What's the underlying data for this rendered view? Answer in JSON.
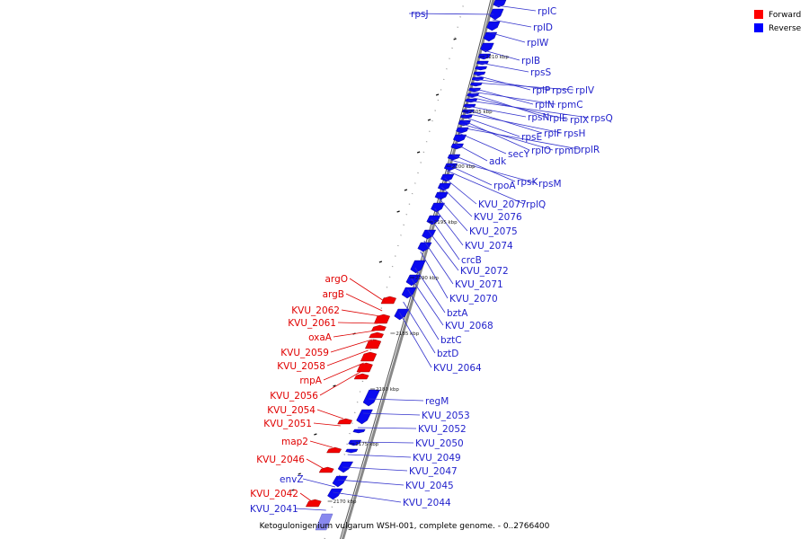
{
  "caption": "Ketogulonigenium vulgarum WSH-001, complete genome. - 0..2766400",
  "legend": [
    {
      "label": "Forward",
      "color": "#ff0000"
    },
    {
      "label": "Reverse",
      "color": "#0000ff"
    }
  ],
  "ticks": [
    "2210 kbp",
    "2205 kbp",
    "2200 kbp",
    "2195 kbp",
    "2190 kbp",
    "2185 kbp",
    "2180 kbp",
    "2175 kbp",
    "2170 kbp"
  ],
  "genes_reverse": [
    "rpsJ",
    "rplC",
    "rplD",
    "rplW",
    "rplB",
    "rpsS",
    "rplP",
    "rpsC",
    "rplV",
    "rplN",
    "rplE",
    "rpmC",
    "rplX",
    "rpsQ",
    "rpsN",
    "rplF",
    "rpsH",
    "rpsE",
    "rplO",
    "rpmD",
    "rplR",
    "secY",
    "adk",
    "rpsK",
    "rpsM",
    "rpoA",
    "rplQ",
    "KVU_2077",
    "KVU_2076",
    "KVU_2075",
    "KVU_2074",
    "crcB",
    "KVU_2072",
    "KVU_2071",
    "KVU_2070",
    "bztA",
    "KVU_2068",
    "bztC",
    "bztD",
    "KVU_2064",
    "regM",
    "KVU_2053",
    "KVU_2052",
    "KVU_2050",
    "KVU_2049",
    "KVU_2047",
    "KVU_2045",
    "KVU_2044",
    "envZ",
    "KVU_2041"
  ],
  "genes_forward": [
    "argO",
    "argB",
    "KVU_2062",
    "KVU_2061",
    "oxaA",
    "KVU_2059",
    "KVU_2058",
    "rnpA",
    "KVU_2056",
    "KVU_2054",
    "KVU_2051",
    "map2",
    "KVU_2046",
    "KVU_2042"
  ],
  "colors": {
    "forward": "#ff0000",
    "reverse": "#0000ff",
    "backbone": "#888888"
  }
}
